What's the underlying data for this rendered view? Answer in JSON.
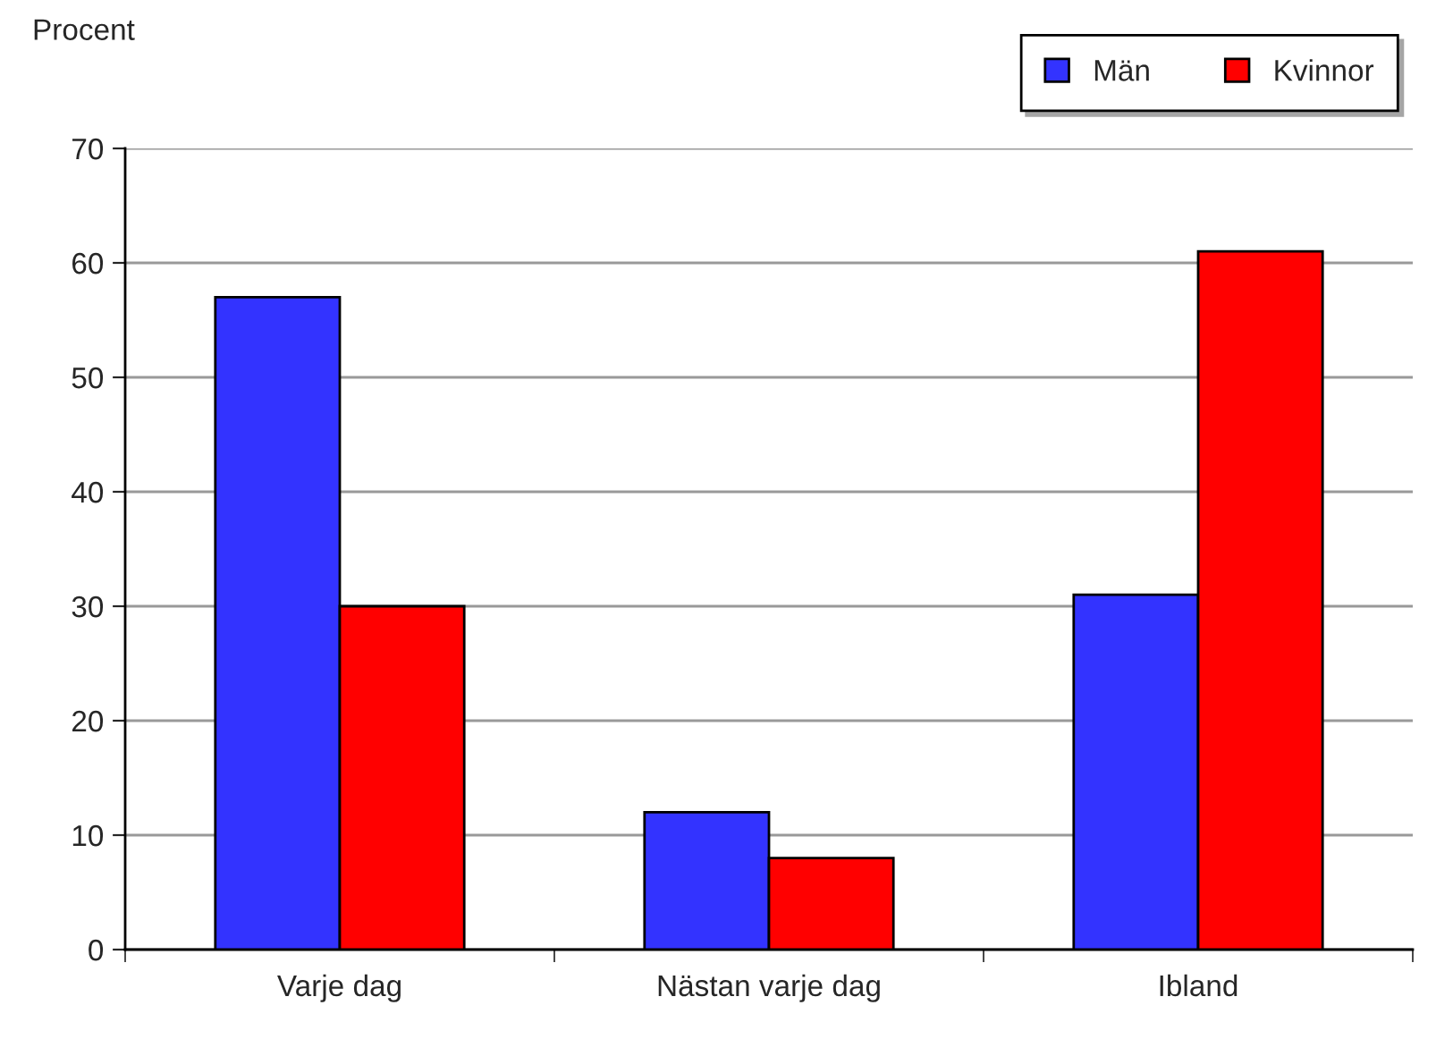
{
  "chart_data": {
    "type": "bar",
    "ylabel": "Procent",
    "categories": [
      "Varje dag",
      "Nästan varje dag",
      "Ibland"
    ],
    "series": [
      {
        "name": "Män",
        "color": "#3333ff",
        "values": [
          57,
          12,
          31
        ]
      },
      {
        "name": "Kvinnor",
        "color": "#ff0000",
        "values": [
          30,
          8,
          61
        ]
      }
    ],
    "ylim": [
      0,
      70
    ],
    "yticks": [
      0,
      10,
      20,
      30,
      40,
      50,
      60,
      70
    ],
    "grid": "y",
    "legend": "top right"
  }
}
